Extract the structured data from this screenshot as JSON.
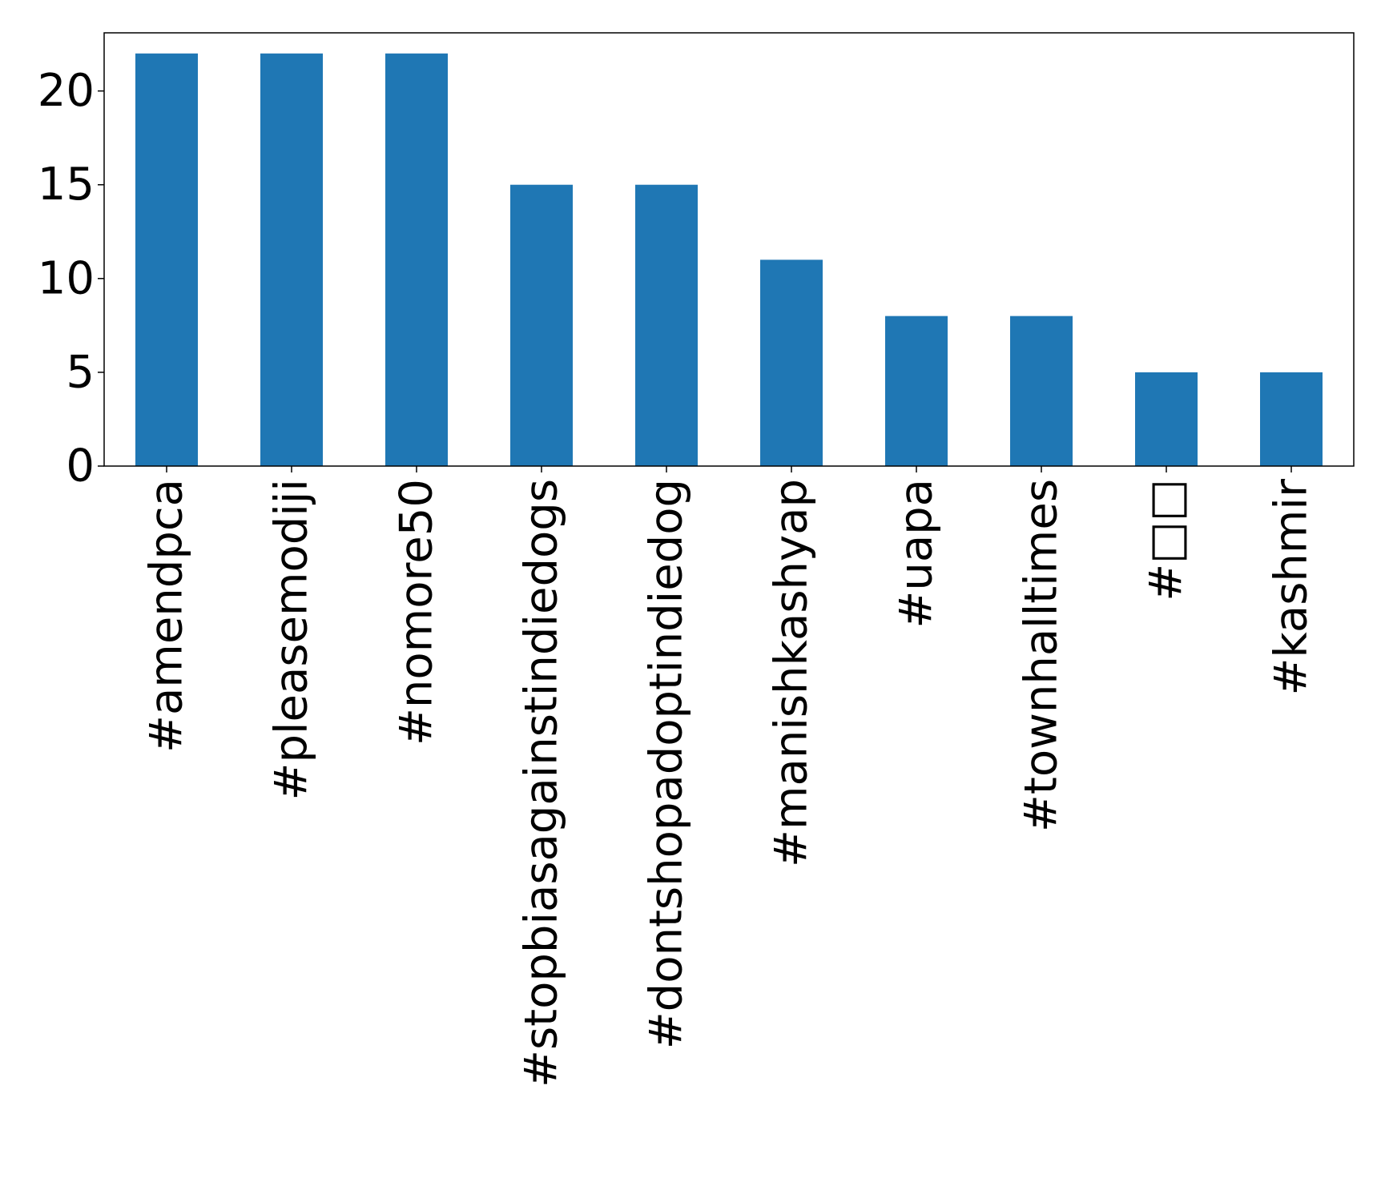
{
  "chart_data": {
    "type": "bar",
    "categories": [
      "#amendpca",
      "#pleasemodiji",
      "#nomore50",
      "#stopbiasagainstindiedogs",
      "#dontshopadoptindiedog",
      "#manishkashyap",
      "#uapa",
      "#townhalltimes",
      "#□□",
      "#kashmir"
    ],
    "values": [
      22,
      22,
      22,
      15,
      15,
      11,
      8,
      8,
      5,
      5
    ],
    "title": "",
    "xlabel": "",
    "ylabel": "",
    "ylim": [
      0,
      23.1
    ],
    "yticks": [
      0,
      5,
      10,
      15,
      20
    ],
    "grid": false,
    "legend": "none",
    "bar_color": "#1f77b4"
  }
}
